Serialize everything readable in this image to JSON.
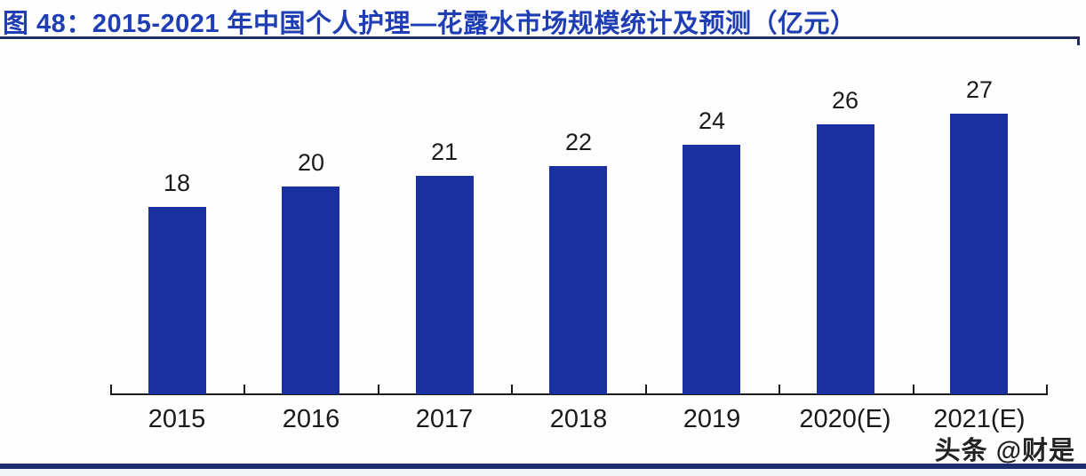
{
  "header": {
    "title": "图 48：2015-2021 年中国个人护理—花露水市场规模统计及预测（亿元）"
  },
  "chart_data": {
    "type": "bar",
    "title": "2015-2021 年中国个人护理—花露水市场规模统计及预测（亿元）",
    "categories": [
      "2015",
      "2016",
      "2017",
      "2018",
      "2019",
      "2020(E)",
      "2021(E)"
    ],
    "values": [
      18,
      20,
      21,
      22,
      24,
      26,
      27
    ],
    "unit_label": "亿元",
    "xlabel": "",
    "ylabel": "",
    "ylim": [
      0,
      28
    ],
    "grid": false,
    "legend": "none",
    "data_labels": true
  },
  "colors": {
    "bar": "#1a309f",
    "title_text": "#1f3eb3",
    "title_rule": "#232c5f",
    "bottom_rule": "#1d2c6f",
    "axis": "#1a1a1a",
    "label_text": "#1a1a1a"
  },
  "watermark": {
    "text": "头条 @财是"
  }
}
